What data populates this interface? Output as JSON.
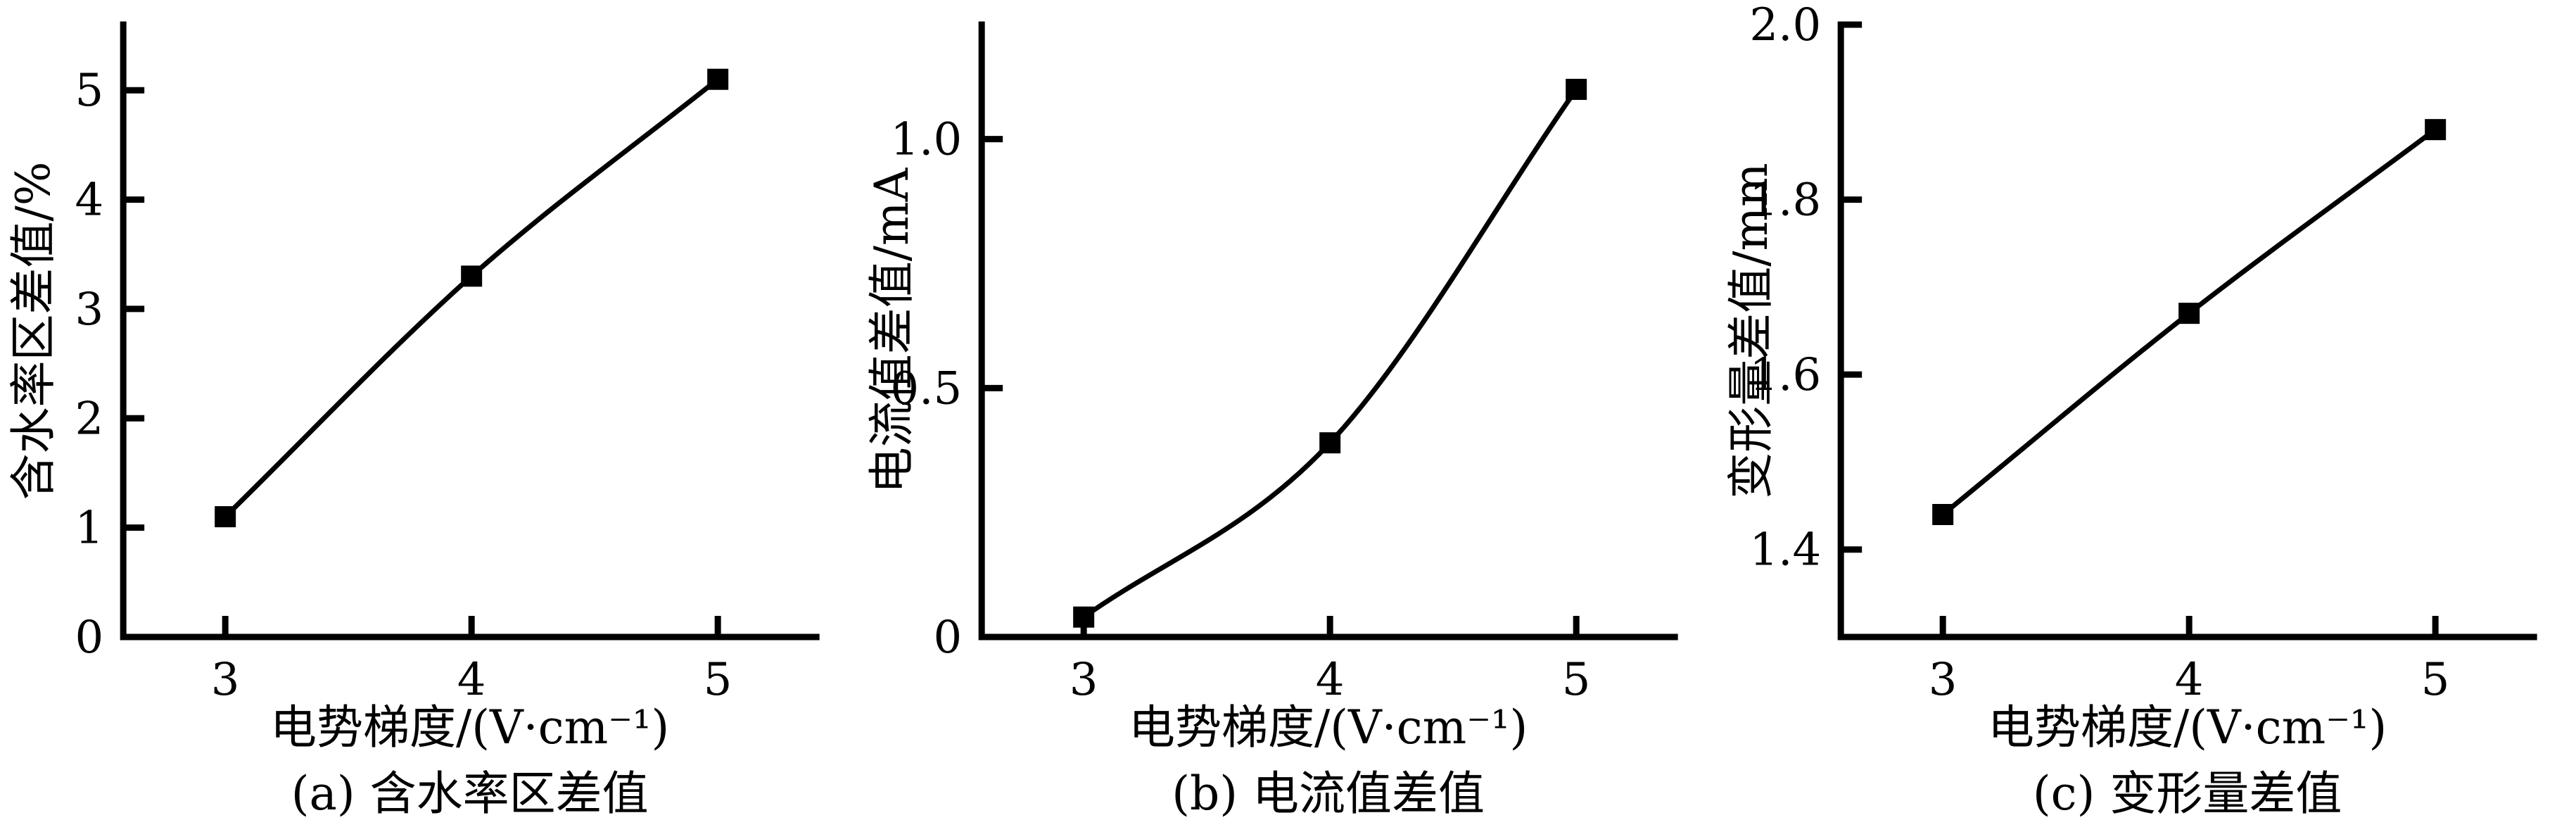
{
  "page": {
    "background": "#ffffff",
    "ink": "#000000",
    "description": "Three-panel line chart figure"
  },
  "chart_data": [
    {
      "id": "a",
      "type": "line",
      "caption": "(a) 含水率区差值",
      "xlabel": "电势梯度/(V·cm⁻¹)",
      "ylabel": "含水率区差值/%",
      "x": [
        3,
        4,
        5
      ],
      "y": [
        1.1,
        3.3,
        5.1
      ],
      "xticks": [
        3,
        4,
        5
      ],
      "xtick_labels": [
        "3",
        "4",
        "5"
      ],
      "yticks": [
        0,
        1,
        2,
        3,
        4,
        5
      ],
      "ytick_labels": [
        "0",
        "1",
        "2",
        "3",
        "4",
        "5"
      ],
      "ylim": [
        0,
        5.6
      ],
      "xlim": [
        2.59,
        5.4
      ],
      "marker": "filled-square",
      "line_color": "#000000",
      "grid": false,
      "legend": null
    },
    {
      "id": "b",
      "type": "line",
      "caption": "(b) 电流值差值",
      "xlabel": "电势梯度/(V·cm⁻¹)",
      "ylabel": "电流值差值/mA",
      "x": [
        3,
        4,
        5
      ],
      "y": [
        0.04,
        0.39,
        1.1
      ],
      "xticks": [
        3,
        4,
        5
      ],
      "xtick_labels": [
        "3",
        "4",
        "5"
      ],
      "yticks": [
        0,
        0.5,
        1.0
      ],
      "ytick_labels": [
        "0",
        "0.5",
        "1.0"
      ],
      "ylim": [
        0,
        1.23
      ],
      "xlim": [
        2.59,
        5.4
      ],
      "marker": "filled-square",
      "line_color": "#000000",
      "grid": false,
      "legend": null
    },
    {
      "id": "c",
      "type": "line",
      "caption": "(c) 变形量差值",
      "xlabel": "电势梯度/(V·cm⁻¹)",
      "ylabel": "变形量差值/mm",
      "x": [
        3,
        4,
        5
      ],
      "y": [
        1.44,
        1.67,
        1.88
      ],
      "xticks": [
        3,
        4,
        5
      ],
      "xtick_labels": [
        "3",
        "4",
        "5"
      ],
      "yticks": [
        1.4,
        1.6,
        1.8,
        2.0
      ],
      "ytick_labels": [
        "1.4",
        "1.6",
        "1.8",
        "2.0"
      ],
      "ylim": [
        1.3,
        2.0
      ],
      "xlim": [
        2.59,
        5.4
      ],
      "marker": "filled-square",
      "line_color": "#000000",
      "grid": false,
      "legend": null
    }
  ]
}
